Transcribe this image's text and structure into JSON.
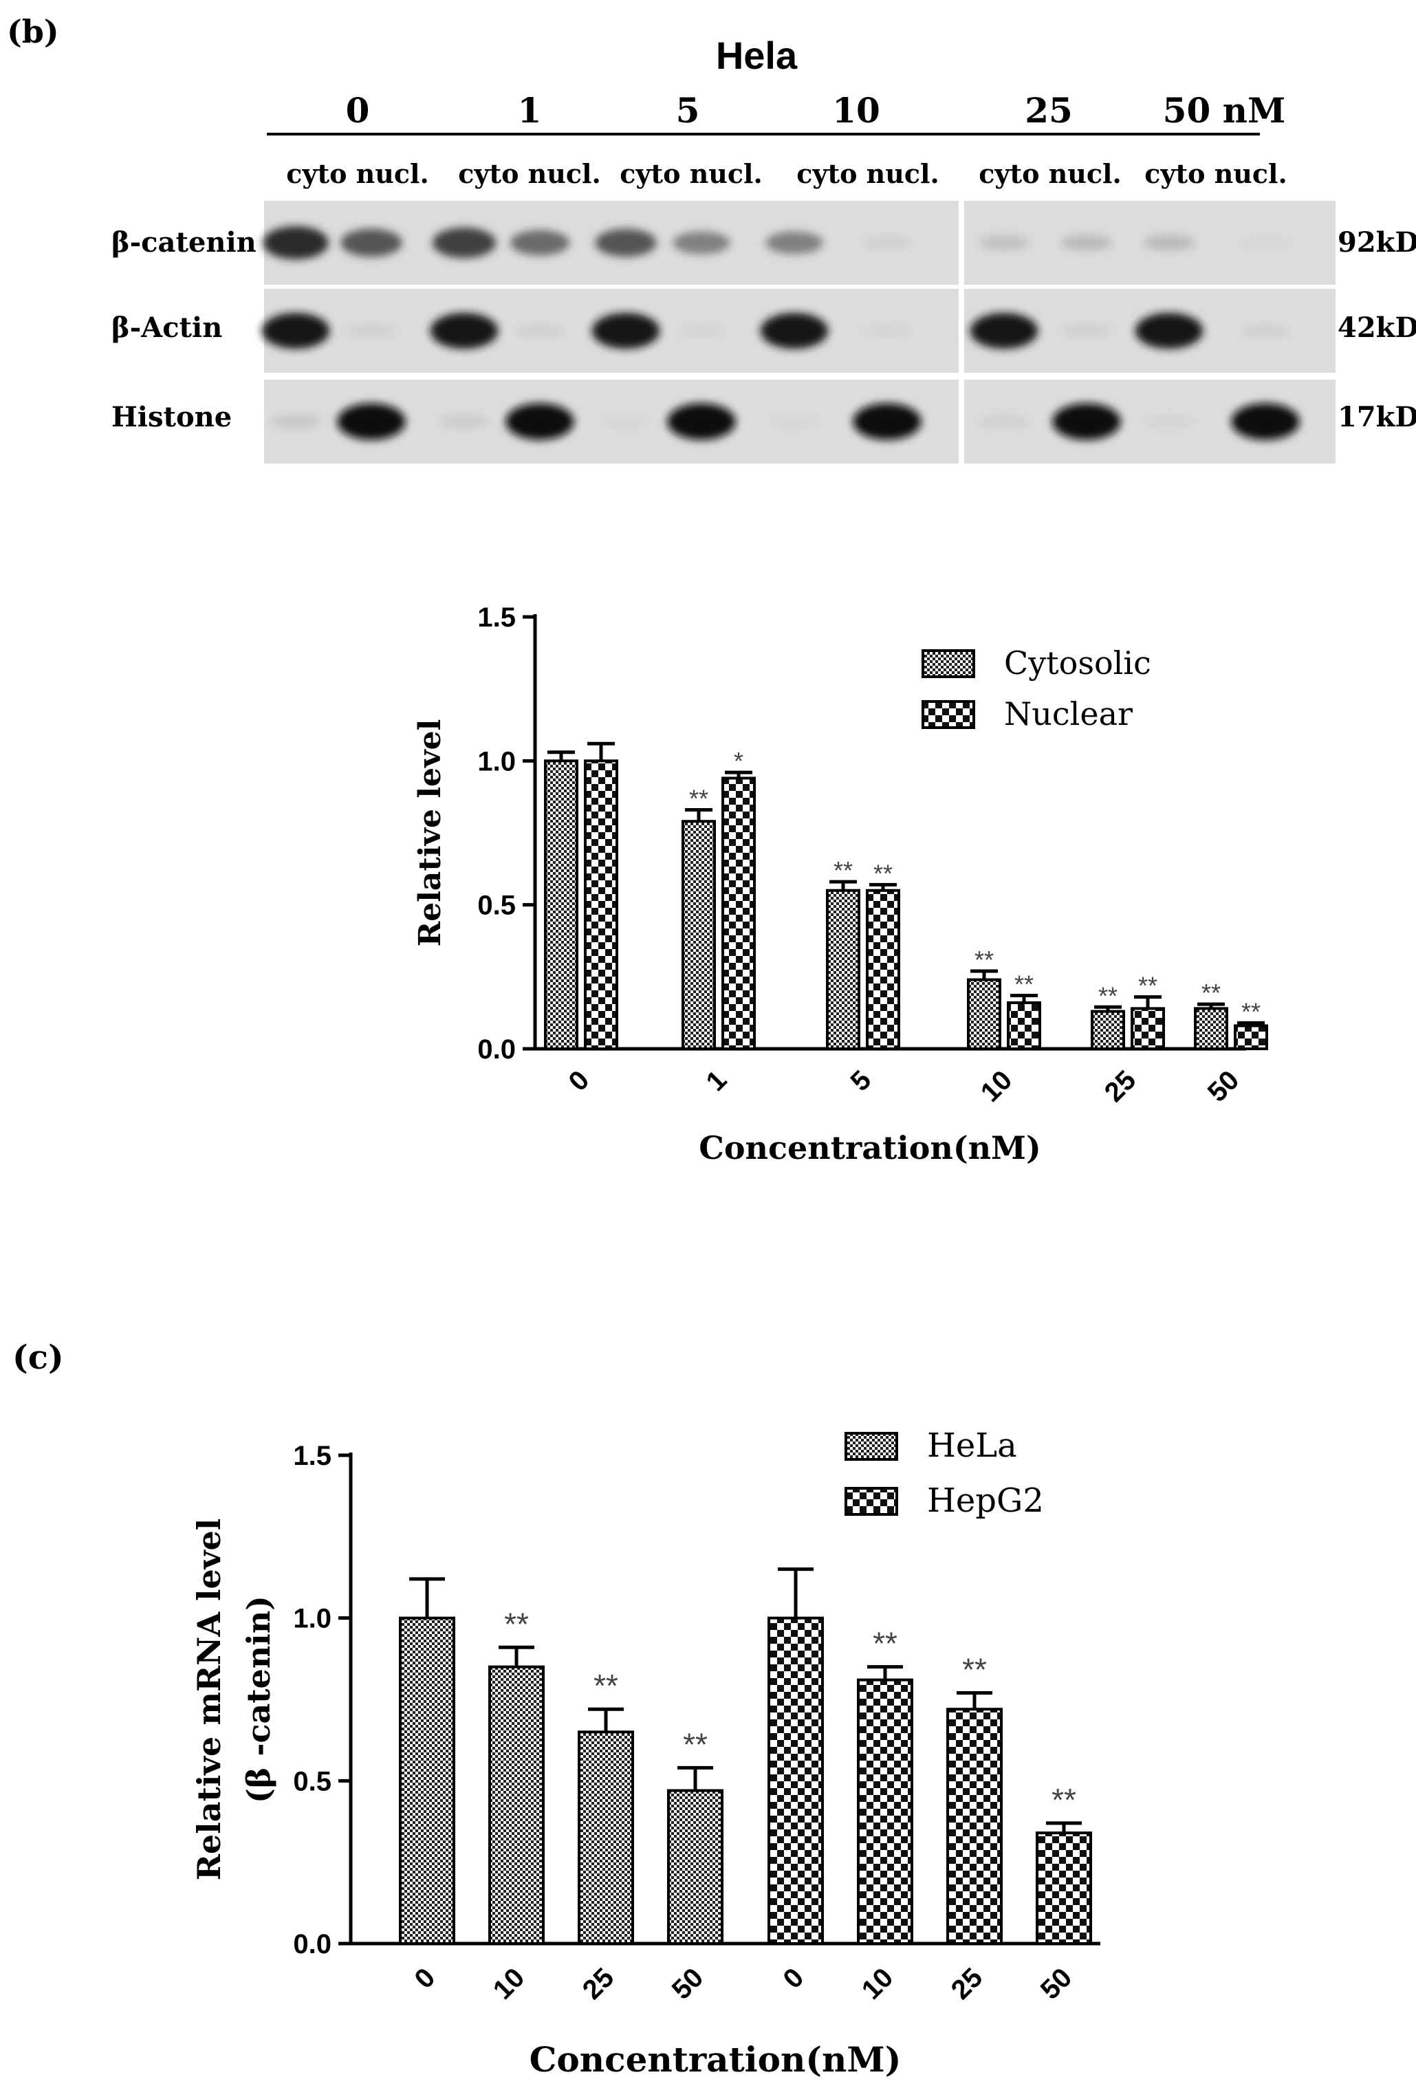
{
  "panel_b": {
    "label": "(b)",
    "blot": {
      "cell_line": "Hela",
      "concentrations": [
        "0",
        "1",
        "5",
        "10",
        "25",
        "50 nM"
      ],
      "fraction_labels": [
        "cyto nucl.",
        "cyto nucl.",
        "cyto nucl.",
        "cyto nucl.",
        "cyto nucl.",
        "cyto nucl."
      ],
      "rows": [
        {
          "protein": "β-catenin",
          "size": "92kD",
          "intensity": [
            0.85,
            0.65,
            0.75,
            0.55,
            0.65,
            0.45,
            0.45,
            0.08,
            0.15,
            0.18,
            0.18,
            0.05
          ]
        },
        {
          "protein": "β-Actin",
          "size": "42kD",
          "intensity": [
            0.95,
            0.08,
            0.95,
            0.08,
            0.95,
            0.06,
            0.95,
            0.06,
            0.95,
            0.08,
            0.95,
            0.08
          ]
        },
        {
          "protein": "Histone",
          "size": "17kD",
          "intensity": [
            0.12,
            0.98,
            0.1,
            0.98,
            0.05,
            0.98,
            0.05,
            0.98,
            0.08,
            0.98,
            0.06,
            0.98
          ]
        }
      ]
    }
  },
  "panel_c": {
    "label": "(c)"
  },
  "chart_data": [
    {
      "type": "bar",
      "title": "",
      "xlabel": "Concentration(nM)",
      "ylabel": "Relative level",
      "categories": [
        "0",
        "1",
        "5",
        "10",
        "25",
        "50"
      ],
      "ylim": [
        0,
        1.5
      ],
      "yticks": [
        "0.0",
        "0.5",
        "1.0",
        "1.5"
      ],
      "legend_position": "top-right",
      "series": [
        {
          "name": "Cytosolic",
          "pattern": "fine-checker",
          "values": [
            1.0,
            0.79,
            0.55,
            0.24,
            0.13,
            0.14
          ],
          "errors": [
            0.03,
            0.04,
            0.03,
            0.03,
            0.015,
            0.015
          ],
          "significance": [
            "",
            "**",
            "**",
            "**",
            "**",
            "**"
          ]
        },
        {
          "name": "Nuclear",
          "pattern": "coarse-checker",
          "values": [
            1.0,
            0.94,
            0.55,
            0.16,
            0.14,
            0.08
          ],
          "errors": [
            0.06,
            0.02,
            0.02,
            0.025,
            0.04,
            0.01
          ],
          "significance": [
            "",
            "*",
            "**",
            "**",
            "**",
            "**"
          ]
        }
      ]
    },
    {
      "type": "bar",
      "title": "",
      "xlabel": "Concentration(nM)",
      "ylabel": "Relative mRNA level",
      "ylabel2": "(β -catenin)",
      "ylim": [
        0,
        1.5
      ],
      "yticks": [
        "0.0",
        "0.5",
        "1.0",
        "1.5"
      ],
      "legend_position": "top-right",
      "series": [
        {
          "name": "HeLa",
          "pattern": "fine-checker",
          "categories": [
            "0",
            "10",
            "25",
            "50"
          ],
          "values": [
            1.0,
            0.85,
            0.65,
            0.47
          ],
          "errors": [
            0.12,
            0.06,
            0.07,
            0.07
          ],
          "significance": [
            "",
            "**",
            "**",
            "**"
          ]
        },
        {
          "name": "HepG2",
          "pattern": "coarse-checker",
          "categories": [
            "0",
            "10",
            "25",
            "50"
          ],
          "values": [
            1.0,
            0.81,
            0.72,
            0.34
          ],
          "errors": [
            0.15,
            0.04,
            0.05,
            0.03
          ],
          "significance": [
            "",
            "**",
            "**",
            "**"
          ]
        }
      ]
    }
  ]
}
